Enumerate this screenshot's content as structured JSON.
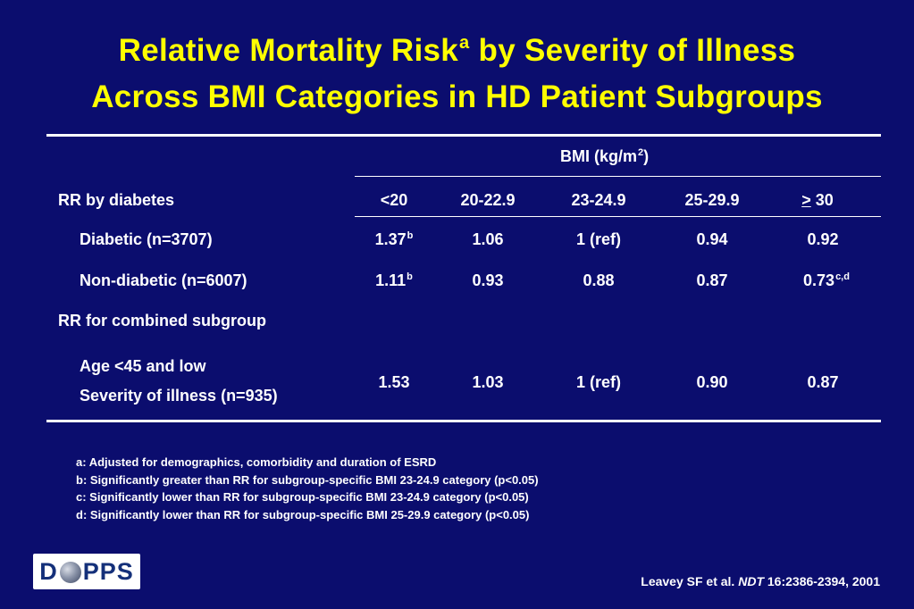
{
  "title": {
    "line1_main": "Relative Mortality Risk",
    "line1_sup": "a",
    "line1_rest": " by Severity of Illness",
    "line2": "Across BMI Categories in HD Patient Subgroups"
  },
  "table": {
    "group_header_main": "BMI (kg/m",
    "group_header_sup": "2",
    "group_header_close": ")",
    "row_header": "RR by diabetes",
    "columns": [
      {
        "label": "<20"
      },
      {
        "label": "20-22.9"
      },
      {
        "label": "23-24.9"
      },
      {
        "label": "25-29.9"
      },
      {
        "prefix": ">",
        "label": " 30"
      }
    ],
    "rows": {
      "diabetic": {
        "label": "Diabetic (n=3707)",
        "cells": [
          {
            "v": "1.37",
            "sup": "b"
          },
          {
            "v": "1.06",
            "sup": ""
          },
          {
            "v": "1 (ref)",
            "sup": ""
          },
          {
            "v": "0.94",
            "sup": ""
          },
          {
            "v": "0.92",
            "sup": ""
          }
        ]
      },
      "nondiabetic": {
        "label": "Non-diabetic (n=6007)",
        "cells": [
          {
            "v": "1.11",
            "sup": "b"
          },
          {
            "v": "0.93",
            "sup": ""
          },
          {
            "v": "0.88",
            "sup": ""
          },
          {
            "v": "0.87",
            "sup": ""
          },
          {
            "v": "0.73",
            "sup": "c,d"
          }
        ]
      },
      "combined_header": "RR for combined subgroup",
      "combined": {
        "label_line1": "Age <45 and low",
        "label_line2": "Severity of illness (n=935)",
        "cells": [
          {
            "v": "1.53",
            "sup": ""
          },
          {
            "v": "1.03",
            "sup": ""
          },
          {
            "v": "1 (ref)",
            "sup": ""
          },
          {
            "v": "0.90",
            "sup": ""
          },
          {
            "v": "0.87",
            "sup": ""
          }
        ]
      }
    }
  },
  "footnotes": [
    "a: Adjusted for demographics, comorbidity and duration of ESRD",
    "b: Significantly greater than RR for subgroup-specific BMI 23-24.9 category (p<0.05)",
    "c: Significantly lower than RR for subgroup-specific BMI 23-24.9 category (p<0.05)",
    "d: Significantly lower than RR for subgroup-specific BMI 25-29.9 category (p<0.05)"
  ],
  "logo": {
    "left": "D",
    "right": "PPS"
  },
  "citation": {
    "pre": "Leavey SF et al. ",
    "journal": "NDT",
    "post": " 16:2386-2394, 2001"
  },
  "colors": {
    "background": "#0b0d6e",
    "title": "#ffff00",
    "text": "#ffffff"
  }
}
